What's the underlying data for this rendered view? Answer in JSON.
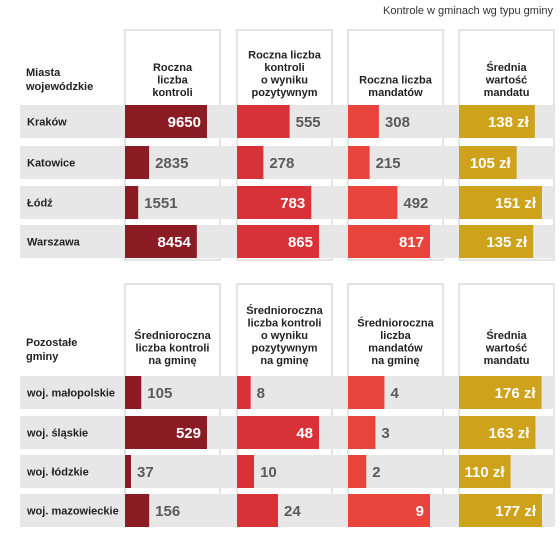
{
  "chart_data": {
    "type": "table",
    "title": "Kontrole w gminach wg typu gminy",
    "colors": {
      "dark_red": "#8c1c24",
      "red": "#d93138",
      "light_red": "#e8443c",
      "gold": "#cea21a",
      "row_bg": "#e7e7e7",
      "value_text": "#5b5b5b",
      "label_text": "#222222"
    },
    "tables": [
      {
        "row_header": [
          "Miasta",
          "wojewódzkie"
        ],
        "columns": [
          {
            "label": [
              "Roczna",
              "liczba",
              "kontroli"
            ],
            "color": "dark_red"
          },
          {
            "label": [
              "Roczna liczba",
              "kontroli",
              "o wyniku",
              "pozytywnym"
            ],
            "color": "red"
          },
          {
            "label": [
              "Roczna liczba",
              "mandatów"
            ],
            "color": "light_red"
          },
          {
            "label": [
              "Średnia",
              "wartość",
              "mandatu"
            ],
            "color": "gold",
            "unit": " zł"
          }
        ],
        "rows": [
          {
            "name": "Kraków",
            "values": [
              9650,
              555,
              308,
              138
            ]
          },
          {
            "name": "Katowice",
            "values": [
              2835,
              278,
              215,
              105
            ]
          },
          {
            "name": "Łódź",
            "values": [
              1551,
              783,
              492,
              151
            ]
          },
          {
            "name": "Warszawa",
            "values": [
              8454,
              865,
              817,
              135
            ]
          }
        ]
      },
      {
        "row_header": [
          "Pozostałe",
          "gminy"
        ],
        "columns": [
          {
            "label": [
              "Średnioroczna",
              "liczba kontroli",
              "na gminę"
            ],
            "color": "dark_red"
          },
          {
            "label": [
              "Średnioroczna",
              "liczba kontroli",
              "o wyniku",
              "pozytywnym",
              "na gminę"
            ],
            "color": "red"
          },
          {
            "label": [
              "Średnioroczna",
              "liczba",
              "mandatów",
              "na gminę"
            ],
            "color": "light_red"
          },
          {
            "label": [
              "Średnia",
              "wartość",
              "mandatu"
            ],
            "color": "gold",
            "unit": " zł"
          }
        ],
        "rows": [
          {
            "name": "woj. małopolskie",
            "values": [
              105,
              8,
              4,
              176
            ]
          },
          {
            "name": "woj. śląskie",
            "values": [
              529,
              48,
              3,
              163
            ]
          },
          {
            "name": "woj. łódzkie",
            "values": [
              37,
              10,
              2,
              110
            ]
          },
          {
            "name": "woj. mazowieckie",
            "values": [
              156,
              24,
              9,
              177
            ]
          }
        ]
      }
    ]
  }
}
